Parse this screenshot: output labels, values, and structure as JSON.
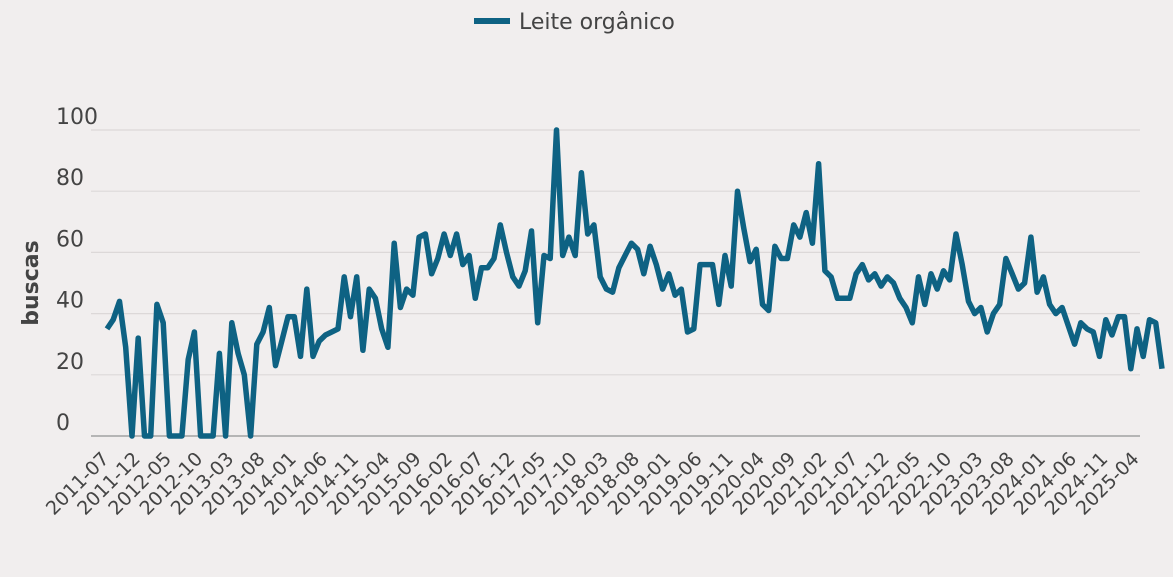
{
  "chart_data": {
    "type": "line",
    "title": "",
    "xlabel": "",
    "ylabel": "buscas",
    "ylim": [
      0,
      100
    ],
    "yticks": [
      0,
      20,
      40,
      60,
      80,
      100
    ],
    "grid": true,
    "legend_position": "top-center",
    "xtick_labels": [
      "2011-07",
      "2011-12",
      "2012-05",
      "2012-10",
      "2013-03",
      "2013-08",
      "2014-01",
      "2014-06",
      "2014-11",
      "2015-04",
      "2015-09",
      "2016-02",
      "2016-07",
      "2016-12",
      "2017-05",
      "2017-10",
      "2018-03",
      "2018-08",
      "2019-01",
      "2019-06",
      "2019-11",
      "2020-04",
      "2020-09",
      "2021-02",
      "2021-07",
      "2021-12",
      "2022-05",
      "2022-10",
      "2023-03",
      "2023-08",
      "2024-01",
      "2024-06",
      "2024-11",
      "2025-04"
    ],
    "x_start": "2011-07",
    "x_end": "2025-04",
    "series": [
      {
        "name": "Leite orgânico",
        "color": "#0e6283",
        "values": [
          35,
          38,
          44,
          29,
          0,
          32,
          0,
          0,
          43,
          37,
          0,
          0,
          0,
          25,
          34,
          0,
          0,
          0,
          27,
          0,
          37,
          27,
          20,
          0,
          30,
          34,
          42,
          23,
          31,
          39,
          39,
          26,
          48,
          26,
          31,
          33,
          34,
          35,
          52,
          39,
          52,
          28,
          48,
          45,
          35,
          29,
          63,
          42,
          48,
          46,
          65,
          66,
          53,
          58,
          66,
          59,
          66,
          56,
          59,
          45,
          55,
          55,
          58,
          69,
          60,
          52,
          49,
          54,
          67,
          37,
          59,
          58,
          100,
          59,
          65,
          59,
          86,
          66,
          69,
          52,
          48,
          47,
          55,
          59,
          63,
          61,
          53,
          62,
          56,
          48,
          53,
          46,
          48,
          34,
          35,
          56,
          56,
          56,
          43,
          59,
          49,
          80,
          68,
          57,
          61,
          43,
          41,
          62,
          58,
          58,
          69,
          65,
          73,
          63,
          89,
          54,
          52,
          45,
          45,
          45,
          53,
          56,
          51,
          53,
          49,
          52,
          50,
          45,
          42,
          37,
          52,
          43,
          53,
          48,
          54,
          51,
          66,
          56,
          44,
          40,
          42,
          34,
          40,
          43,
          58,
          53,
          48,
          50,
          65,
          47,
          52,
          43,
          40,
          42,
          36,
          30,
          37,
          35,
          34,
          26,
          38,
          33,
          39,
          39,
          22,
          35,
          26,
          38,
          37,
          22
        ]
      }
    ]
  }
}
